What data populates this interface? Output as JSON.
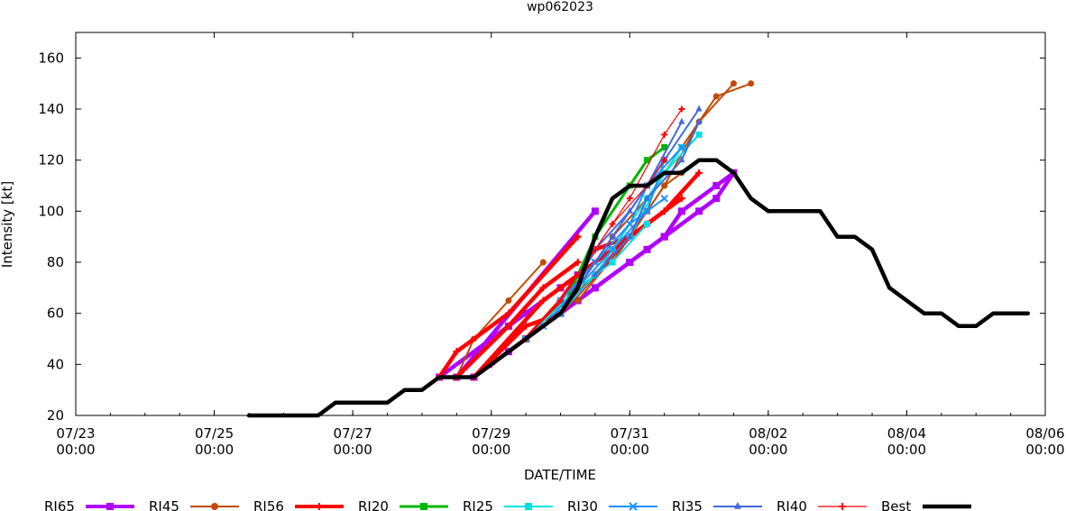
{
  "chart_data": {
    "type": "line",
    "title": "wp062023",
    "xlabel": "DATE/TIME",
    "ylabel": "Intensity [kt]",
    "xlim": [
      "07/23 00:00",
      "08/06 00:00"
    ],
    "ylim": [
      20,
      170
    ],
    "y_ticks": [
      20,
      40,
      60,
      80,
      100,
      120,
      140,
      160
    ],
    "x_ticks": [
      {
        "line1": "07/23",
        "line2": "00:00"
      },
      {
        "line1": "07/25",
        "line2": "00:00"
      },
      {
        "line1": "07/27",
        "line2": "00:00"
      },
      {
        "line1": "07/29",
        "line2": "00:00"
      },
      {
        "line1": "07/31",
        "line2": "00:00"
      },
      {
        "line1": "08/02",
        "line2": "00:00"
      },
      {
        "line1": "08/04",
        "line2": "00:00"
      },
      {
        "line1": "08/06",
        "line2": "00:00"
      }
    ],
    "grid": false,
    "legend_position": "bottom",
    "series": [
      {
        "name": "RI65",
        "color": "#b000ff",
        "marker": "square",
        "width": 4.5,
        "paths": [
          {
            "x": [
              "07/28 12:00",
              "07/30 12:00"
            ],
            "y": [
              35,
              100
            ]
          }
        ]
      },
      {
        "name": "RI45",
        "color": "#b000ff",
        "marker": "square",
        "width": 4.5,
        "paths": [
          {
            "x": [
              "07/28 18:00",
              "07/29 06:00",
              "07/29 12:00",
              "07/30 00:00",
              "07/30 12:00",
              "07/31 00:00",
              "07/31 12:00",
              "08/01 00:00",
              "08/01 06:00",
              "08/01 12:00"
            ],
            "y": [
              35,
              45,
              50,
              60,
              70,
              80,
              90,
              100,
              105,
              115
            ]
          },
          {
            "x": [
              "07/28 06:00",
              "07/29 06:00",
              "07/29 12:00",
              "07/30 00:00",
              "07/30 06:00"
            ],
            "y": [
              35,
              55,
              60,
              70,
              75
            ]
          },
          {
            "x": [
              "07/28 18:00",
              "07/29 12:00",
              "07/30 06:00",
              "07/31 00:00",
              "07/31 06:00",
              "07/31 12:00",
              "07/31 18:00",
              "08/01 06:00",
              "08/01 12:00"
            ],
            "y": [
              35,
              50,
              65,
              80,
              85,
              90,
              100,
              110,
              115
            ]
          }
        ]
      },
      {
        "name": "RI56",
        "color": "#c04a00",
        "marker": "circle",
        "width": 2,
        "paths": [
          {
            "x": [
              "07/28 12:00",
              "07/28 18:00",
              "07/29 06:00",
              "07/29 18:00"
            ],
            "y": [
              35,
              50,
              65,
              80
            ]
          },
          {
            "x": [
              "07/30 00:00",
              "07/30 18:00",
              "07/31 06:00",
              "08/01 06:00",
              "08/01 18:00"
            ],
            "y": [
              60,
              90,
              105,
              145,
              150
            ]
          },
          {
            "x": [
              "07/30 06:00",
              "07/31 00:00",
              "07/31 12:00",
              "08/01 00:00",
              "08/01 12:00"
            ],
            "y": [
              65,
              90,
              110,
              135,
              150
            ]
          },
          {
            "x": [
              "07/30 18:00",
              "07/31 06:00",
              "07/31 12:00",
              "07/31 18:00"
            ],
            "y": [
              80,
              100,
              110,
              115
            ]
          }
        ]
      },
      {
        "name": "RI20",
        "color": "#ff0000",
        "marker": "plus",
        "width": 4.5,
        "paths": [
          {
            "x": [
              "07/28 06:00",
              "07/28 12:00",
              "07/29 06:00",
              "07/30 06:00"
            ],
            "y": [
              35,
              45,
              60,
              90
            ]
          },
          {
            "x": [
              "07/28 12:00",
              "07/29 06:00",
              "07/29 18:00",
              "07/30 06:00"
            ],
            "y": [
              35,
              55,
              70,
              80
            ]
          },
          {
            "x": [
              "07/28 18:00",
              "07/29 12:00",
              "07/30 00:00",
              "07/30 12:00",
              "07/31 00:00",
              "07/31 12:00",
              "07/31 18:00"
            ],
            "y": [
              35,
              55,
              60,
              75,
              90,
              100,
              105
            ]
          },
          {
            "x": [
              "07/29 00:00",
              "07/29 12:00",
              "07/30 00:00",
              "07/30 12:00",
              "07/31 00:00",
              "07/31 12:00",
              "08/01 00:00"
            ],
            "y": [
              40,
              50,
              65,
              85,
              90,
              100,
              115
            ]
          },
          {
            "x": [
              "07/28 18:00",
              "07/29 18:00",
              "07/30 00:00",
              "07/30 18:00",
              "07/31 06:00"
            ],
            "y": [
              35,
              65,
              70,
              85,
              95
            ]
          }
        ]
      },
      {
        "name": "RI25",
        "color": "#00b400",
        "marker": "square",
        "width": 3,
        "paths": [
          {
            "x": [
              "07/30 00:00",
              "07/30 12:00",
              "07/31 00:00",
              "07/31 06:00",
              "07/31 12:00"
            ],
            "y": [
              60,
              90,
              110,
              120,
              125
            ]
          }
        ]
      },
      {
        "name": "RI30",
        "color": "#00e0e0",
        "marker": "square",
        "width": 2,
        "paths": [
          {
            "x": [
              "07/29 12:00",
              "07/30 00:00",
              "07/30 12:00",
              "07/31 00:00",
              "07/31 12:00",
              "08/01 00:00"
            ],
            "y": [
              50,
              60,
              75,
              90,
              115,
              130
            ]
          },
          {
            "x": [
              "07/30 00:00",
              "07/30 12:00",
              "07/30 18:00",
              "07/31 06:00",
              "07/31 18:00"
            ],
            "y": [
              60,
              75,
              85,
              105,
              125
            ]
          },
          {
            "x": [
              "07/29 12:00",
              "07/30 06:00",
              "07/30 18:00",
              "07/31 06:00"
            ],
            "y": [
              50,
              70,
              80,
              95
            ]
          }
        ]
      },
      {
        "name": "RI35",
        "color": "#1e90ff",
        "marker": "x",
        "width": 2,
        "paths": [
          {
            "x": [
              "07/29 12:00",
              "07/30 00:00",
              "07/30 12:00",
              "07/31 00:00",
              "07/31 06:00",
              "07/31 18:00"
            ],
            "y": [
              50,
              60,
              80,
              95,
              110,
              125
            ]
          },
          {
            "x": [
              "07/29 18:00",
              "07/30 06:00",
              "07/30 18:00",
              "07/31 06:00",
              "07/31 12:00"
            ],
            "y": [
              55,
              70,
              85,
              100,
              120
            ]
          },
          {
            "x": [
              "07/30 00:00",
              "07/30 12:00",
              "07/31 00:00",
              "07/31 12:00"
            ],
            "y": [
              65,
              80,
              95,
              105
            ]
          }
        ]
      },
      {
        "name": "RI40",
        "color": "#4169e1",
        "marker": "triangle",
        "width": 2,
        "paths": [
          {
            "x": [
              "07/30 00:00",
              "07/30 12:00",
              "07/31 00:00",
              "07/31 12:00",
              "08/01 00:00"
            ],
            "y": [
              60,
              85,
              100,
              120,
              140
            ]
          },
          {
            "x": [
              "07/30 06:00",
              "07/30 18:00",
              "07/31 06:00",
              "07/31 18:00"
            ],
            "y": [
              70,
              90,
              110,
              135
            ]
          },
          {
            "x": [
              "07/30 12:00",
              "07/31 00:00",
              "07/31 06:00",
              "07/31 18:00",
              "08/01 00:00"
            ],
            "y": [
              75,
              90,
              105,
              120,
              135
            ]
          }
        ]
      },
      {
        "name": "Best",
        "color": "#ff0000",
        "marker": "plus",
        "width": 1.2,
        "paths": [
          {
            "x": [
              "07/29 12:00",
              "07/30 00:00",
              "07/30 12:00",
              "07/31 00:00",
              "07/31 12:00",
              "07/31 18:00"
            ],
            "y": [
              50,
              65,
              85,
              105,
              130,
              140
            ]
          },
          {
            "x": [
              "07/30 06:00",
              "07/30 18:00",
              "07/31 06:00",
              "07/31 12:00"
            ],
            "y": [
              75,
              95,
              110,
              120
            ]
          }
        ]
      },
      {
        "name": "",
        "color": "#000000",
        "marker": "none",
        "width": 4.5,
        "paths": [
          {
            "x": [
              "07/25 12:00",
              "07/26 12:00",
              "07/26 18:00",
              "07/27 00:00",
              "07/27 12:00",
              "07/27 18:00",
              "07/28 00:00",
              "07/28 06:00",
              "07/28 12:00",
              "07/28 18:00",
              "07/29 00:00",
              "07/29 06:00",
              "07/29 12:00",
              "07/29 18:00",
              "07/30 00:00",
              "07/30 06:00",
              "07/30 12:00",
              "07/30 18:00",
              "07/31 00:00",
              "07/31 06:00",
              "07/31 12:00",
              "07/31 18:00",
              "08/01 00:00",
              "08/01 06:00",
              "08/01 12:00",
              "08/01 18:00",
              "08/02 00:00",
              "08/02 06:00",
              "08/02 12:00",
              "08/02 18:00",
              "08/03 00:00",
              "08/03 06:00",
              "08/03 12:00",
              "08/03 18:00",
              "08/04 00:00",
              "08/04 06:00",
              "08/04 12:00",
              "08/04 18:00",
              "08/05 00:00",
              "08/05 06:00",
              "08/05 12:00",
              "08/05 18:00"
            ],
            "y": [
              20,
              20,
              25,
              25,
              25,
              30,
              30,
              35,
              35,
              35,
              40,
              45,
              50,
              55,
              60,
              70,
              90,
              105,
              110,
              110,
              115,
              115,
              120,
              120,
              115,
              105,
              100,
              100,
              100,
              100,
              90,
              90,
              85,
              70,
              65,
              60,
              60,
              55,
              55,
              60,
              60,
              60
            ]
          }
        ]
      }
    ],
    "legend": [
      {
        "label": "RI65",
        "color": "#b000ff",
        "marker": "square",
        "width": 4
      },
      {
        "label": "RI45",
        "color": "#c04a00",
        "marker": "circle",
        "width": 2
      },
      {
        "label": "RI56",
        "color": "#ff0000",
        "marker": "plus",
        "width": 4
      },
      {
        "label": "RI20",
        "color": "#00b400",
        "marker": "square",
        "width": 3
      },
      {
        "label": "RI25",
        "color": "#00e0e0",
        "marker": "square",
        "width": 2
      },
      {
        "label": "RI30",
        "color": "#1e90ff",
        "marker": "x",
        "width": 2
      },
      {
        "label": "RI35",
        "color": "#4169e1",
        "marker": "triangle",
        "width": 2
      },
      {
        "label": "RI40",
        "color": "#ff0000",
        "marker": "plus",
        "width": 1.2
      },
      {
        "label": "Best",
        "color": "#000000",
        "marker": "none",
        "width": 4.5
      }
    ]
  }
}
